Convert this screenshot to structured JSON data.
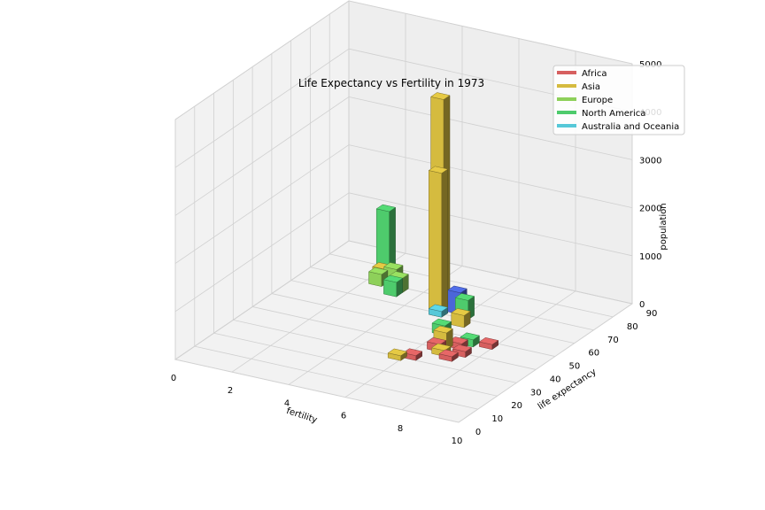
{
  "chart_data": {
    "type": "bar3d",
    "title": "Life Expectancy vs Fertility in 1973",
    "xlabel": "fertility",
    "ylabel": "life expectancy",
    "zlabel": "population",
    "xlim": [
      0,
      10
    ],
    "ylim": [
      0,
      90
    ],
    "zlim": [
      0,
      5000
    ],
    "xticks": [
      "0",
      "2",
      "4",
      "6",
      "8",
      "10"
    ],
    "yticks": [
      "0",
      "10",
      "20",
      "30",
      "40",
      "50",
      "60",
      "70",
      "80",
      "90"
    ],
    "zticks": [
      "0",
      "1000",
      "2000",
      "3000",
      "4000",
      "5000"
    ],
    "grid": true,
    "legend_position": "top-right",
    "series": [
      {
        "name": "Africa",
        "color": "#d65f5f"
      },
      {
        "name": "Asia",
        "color": "#d5bb3f"
      },
      {
        "name": "Europe",
        "color": "#8ed05a"
      },
      {
        "name": "North America",
        "color": "#4ecb6c"
      },
      {
        "name": "Australia and Oceania",
        "color": "#56c8d8"
      }
    ],
    "bars": [
      {
        "series": 1,
        "x": 4.8,
        "y": 62,
        "z": 4400
      },
      {
        "series": 1,
        "x": 5.0,
        "y": 58,
        "z": 3000
      },
      {
        "series": 3,
        "x": 2.2,
        "y": 72,
        "z": 1450
      },
      {
        "series": 1,
        "x": 2.2,
        "y": 70,
        "z": 300
      },
      {
        "series": 2,
        "x": 2.6,
        "y": 70,
        "z": 350
      },
      {
        "series": 2,
        "x": 2.2,
        "y": 68,
        "z": 250
      },
      {
        "series": 2,
        "x": 3.0,
        "y": 67,
        "z": 300
      },
      {
        "series": 3,
        "x": 3.0,
        "y": 64,
        "z": 300
      },
      {
        "series": 3,
        "x": 5.8,
        "y": 60,
        "z": 400
      },
      {
        "series": 3,
        "x": 5.8,
        "y": 48,
        "z": 200
      },
      {
        "series": 1,
        "x": 6.0,
        "y": 55,
        "z": 250
      },
      {
        "series": 4,
        "x": 5.0,
        "y": 58,
        "z": 120
      },
      {
        "series": 1,
        "x": 6.4,
        "y": 40,
        "z": 350
      },
      {
        "series": 0,
        "x": 6.3,
        "y": 38,
        "z": 150
      },
      {
        "series": 0,
        "x": 6.8,
        "y": 42,
        "z": 120
      },
      {
        "series": 0,
        "x": 7.2,
        "y": 38,
        "z": 120
      },
      {
        "series": 1,
        "x": 6.6,
        "y": 36,
        "z": 120
      },
      {
        "series": 3,
        "x": 7.0,
        "y": 45,
        "z": 150
      },
      {
        "series": 0,
        "x": 7.6,
        "y": 46,
        "z": 100
      },
      {
        "series": 0,
        "x": 6.0,
        "y": 30,
        "z": 100
      },
      {
        "series": 1,
        "x": 5.6,
        "y": 28,
        "z": 100
      },
      {
        "series": 0,
        "x": 7.0,
        "y": 34,
        "z": 100
      }
    ],
    "highlight_bar": {
      "x": 5.4,
      "y": 62,
      "z": 450,
      "color": "#4b66d8"
    }
  },
  "legend": {
    "items": [
      {
        "label": "Africa",
        "color": "#d65f5f"
      },
      {
        "label": "Asia",
        "color": "#d5bb3f"
      },
      {
        "label": "Europe",
        "color": "#8ed05a"
      },
      {
        "label": "North America",
        "color": "#4ecb6c"
      },
      {
        "label": "Australia and Oceania",
        "color": "#56c8d8"
      }
    ]
  }
}
